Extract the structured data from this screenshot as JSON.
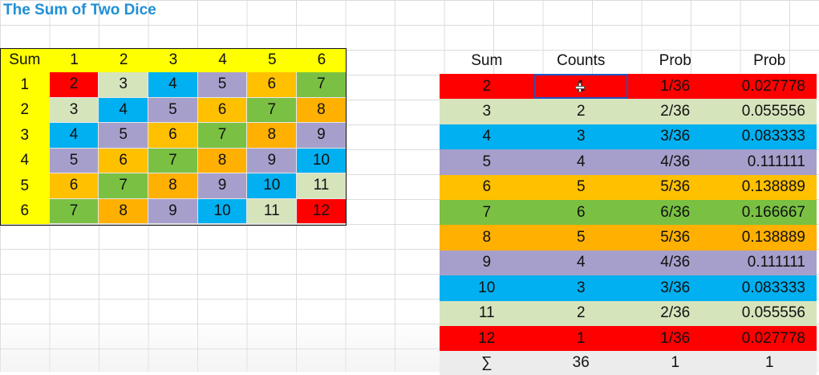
{
  "title": "The Sum of Two Dice",
  "colors": {
    "2": "#ff0000",
    "3": "#d6e4bc",
    "4": "#00b0f0",
    "5": "#a79fcb",
    "6": "#ffc000",
    "7": "#7ac143",
    "8": "#ffb000",
    "9": "#a79fcb",
    "10": "#00b0f0",
    "11": "#d6e4bc",
    "12": "#ff0000",
    "header": "#ffff00",
    "title": "#1f8fd6"
  },
  "dice_grid": {
    "corner": "Sum",
    "columns": [
      "1",
      "2",
      "3",
      "4",
      "5",
      "6"
    ],
    "rows": [
      {
        "label": "1",
        "cells": [
          "2",
          "3",
          "4",
          "5",
          "6",
          "7"
        ]
      },
      {
        "label": "2",
        "cells": [
          "3",
          "4",
          "5",
          "6",
          "7",
          "8"
        ]
      },
      {
        "label": "3",
        "cells": [
          "4",
          "5",
          "6",
          "7",
          "8",
          "9"
        ]
      },
      {
        "label": "4",
        "cells": [
          "5",
          "6",
          "7",
          "8",
          "9",
          "10"
        ]
      },
      {
        "label": "5",
        "cells": [
          "6",
          "7",
          "8",
          "9",
          "10",
          "11"
        ]
      },
      {
        "label": "6",
        "cells": [
          "7",
          "8",
          "9",
          "10",
          "11",
          "12"
        ]
      }
    ]
  },
  "prob_table": {
    "headers": [
      "Sum",
      "Counts",
      "Prob",
      "Prob"
    ],
    "rows": [
      {
        "sum": "2",
        "count": "1",
        "frac": "1/36",
        "dec": "0.027778"
      },
      {
        "sum": "3",
        "count": "2",
        "frac": "2/36",
        "dec": "0.055556"
      },
      {
        "sum": "4",
        "count": "3",
        "frac": "3/36",
        "dec": "0.083333"
      },
      {
        "sum": "5",
        "count": "4",
        "frac": "4/36",
        "dec": "0.111111"
      },
      {
        "sum": "6",
        "count": "5",
        "frac": "5/36",
        "dec": "0.138889"
      },
      {
        "sum": "7",
        "count": "6",
        "frac": "6/36",
        "dec": "0.166667"
      },
      {
        "sum": "8",
        "count": "5",
        "frac": "5/36",
        "dec": "0.138889"
      },
      {
        "sum": "9",
        "count": "4",
        "frac": "4/36",
        "dec": "0.111111"
      },
      {
        "sum": "10",
        "count": "3",
        "frac": "3/36",
        "dec": "0.083333"
      },
      {
        "sum": "11",
        "count": "2",
        "frac": "2/36",
        "dec": "0.055556"
      },
      {
        "sum": "12",
        "count": "1",
        "frac": "1/36",
        "dec": "0.027778"
      }
    ],
    "footer": {
      "sum": "∑",
      "count": "36",
      "frac": "1",
      "dec": "1"
    }
  }
}
